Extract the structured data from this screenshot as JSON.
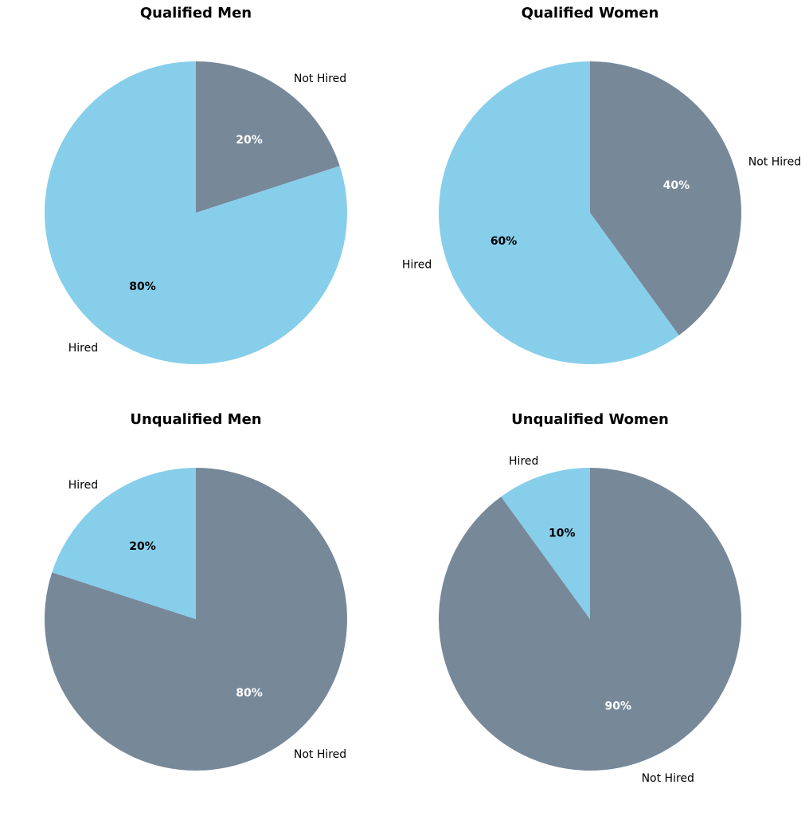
{
  "colors": {
    "hired": "#87CEEB",
    "not_hired": "#778899"
  },
  "chart_data": [
    {
      "type": "pie",
      "title": "Qualified Men",
      "slices": [
        {
          "label": "Not Hired",
          "value": 20,
          "pct_label": "20%",
          "color": "#778899",
          "pct_color": "#ffffff"
        },
        {
          "label": "Hired",
          "value": 80,
          "pct_label": "80%",
          "color": "#87CEEB",
          "pct_color": "#000000"
        }
      ],
      "start_angle": 90,
      "direction": "clockwise"
    },
    {
      "type": "pie",
      "title": "Qualified Women",
      "slices": [
        {
          "label": "Not Hired",
          "value": 40,
          "pct_label": "40%",
          "color": "#778899",
          "pct_color": "#ffffff"
        },
        {
          "label": "Hired",
          "value": 60,
          "pct_label": "60%",
          "color": "#87CEEB",
          "pct_color": "#000000"
        }
      ],
      "start_angle": 90,
      "direction": "clockwise"
    },
    {
      "type": "pie",
      "title": "Unqualified Men",
      "slices": [
        {
          "label": "Not Hired",
          "value": 80,
          "pct_label": "80%",
          "color": "#778899",
          "pct_color": "#ffffff"
        },
        {
          "label": "Hired",
          "value": 20,
          "pct_label": "20%",
          "color": "#87CEEB",
          "pct_color": "#000000"
        }
      ],
      "start_angle": 90,
      "direction": "clockwise"
    },
    {
      "type": "pie",
      "title": "Unqualified Women",
      "slices": [
        {
          "label": "Not Hired",
          "value": 90,
          "pct_label": "90%",
          "color": "#778899",
          "pct_color": "#ffffff"
        },
        {
          "label": "Hired",
          "value": 10,
          "pct_label": "10%",
          "color": "#87CEEB",
          "pct_color": "#000000"
        }
      ],
      "start_angle": 90,
      "direction": "clockwise"
    }
  ]
}
